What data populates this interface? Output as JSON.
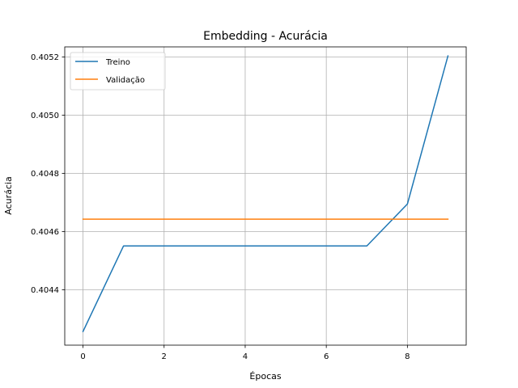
{
  "chart_data": {
    "type": "line",
    "title": "Embedding - Acurácia",
    "xlabel": "Épocas",
    "ylabel": "Acurácia",
    "x": [
      0,
      1,
      2,
      3,
      4,
      5,
      6,
      7,
      8,
      9
    ],
    "xlim": [
      -0.45,
      9.45
    ],
    "ylim": [
      0.40421,
      0.405235
    ],
    "xticks": [
      {
        "value": 0,
        "label": "0"
      },
      {
        "value": 2,
        "label": "2"
      },
      {
        "value": 4,
        "label": "4"
      },
      {
        "value": 6,
        "label": "6"
      },
      {
        "value": 8,
        "label": "8"
      }
    ],
    "yticks": [
      {
        "value": 0.4044,
        "label": "0.4044"
      },
      {
        "value": 0.4046,
        "label": "0.4046"
      },
      {
        "value": 0.4048,
        "label": "0.4048"
      },
      {
        "value": 0.405,
        "label": "0.4050"
      },
      {
        "value": 0.4052,
        "label": "0.4052"
      }
    ],
    "grid": true,
    "legend_position": "top-left",
    "series": [
      {
        "name": "Treino",
        "color": "#1f77b4",
        "values": [
          0.404257,
          0.404551,
          0.404551,
          0.404551,
          0.404551,
          0.404551,
          0.404551,
          0.404551,
          0.404695,
          0.405204
        ]
      },
      {
        "name": "Validação",
        "color": "#ff7f0e",
        "values": [
          0.404643,
          0.404643,
          0.404643,
          0.404643,
          0.404643,
          0.404643,
          0.404643,
          0.404643,
          0.404643,
          0.404643
        ]
      }
    ]
  }
}
